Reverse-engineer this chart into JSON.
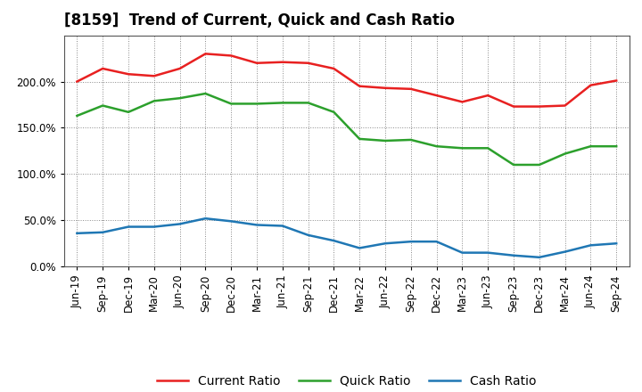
{
  "title": "[8159]  Trend of Current, Quick and Cash Ratio",
  "labels": [
    "Jun-19",
    "Sep-19",
    "Dec-19",
    "Mar-20",
    "Jun-20",
    "Sep-20",
    "Dec-20",
    "Mar-21",
    "Jun-21",
    "Sep-21",
    "Dec-21",
    "Mar-22",
    "Jun-22",
    "Sep-22",
    "Dec-22",
    "Mar-23",
    "Jun-23",
    "Sep-23",
    "Dec-23",
    "Mar-24",
    "Jun-24",
    "Sep-24"
  ],
  "current_ratio": [
    200.0,
    214.0,
    208.0,
    206.0,
    214.0,
    230.0,
    228.0,
    220.0,
    221.0,
    220.0,
    214.0,
    195.0,
    193.0,
    192.0,
    185.0,
    178.0,
    185.0,
    173.0,
    173.0,
    174.0,
    196.0,
    201.0
  ],
  "quick_ratio": [
    163.0,
    174.0,
    167.0,
    179.0,
    182.0,
    187.0,
    176.0,
    176.0,
    177.0,
    177.0,
    167.0,
    138.0,
    136.0,
    137.0,
    130.0,
    128.0,
    128.0,
    110.0,
    110.0,
    122.0,
    130.0,
    130.0
  ],
  "cash_ratio": [
    36.0,
    37.0,
    43.0,
    43.0,
    46.0,
    52.0,
    49.0,
    45.0,
    44.0,
    34.0,
    28.0,
    20.0,
    25.0,
    27.0,
    27.0,
    15.0,
    15.0,
    12.0,
    10.0,
    16.0,
    23.0,
    25.0
  ],
  "current_color": "#e82020",
  "quick_color": "#2ca02c",
  "cash_color": "#1f77b4",
  "ylim": [
    0,
    250
  ],
  "yticks": [
    0.0,
    50.0,
    100.0,
    150.0,
    200.0
  ],
  "background_color": "#ffffff",
  "plot_bg_color": "#ffffff",
  "grid_color": "#888888",
  "line_width": 1.8,
  "title_fontsize": 12,
  "tick_fontsize": 8.5,
  "legend_fontsize": 10
}
